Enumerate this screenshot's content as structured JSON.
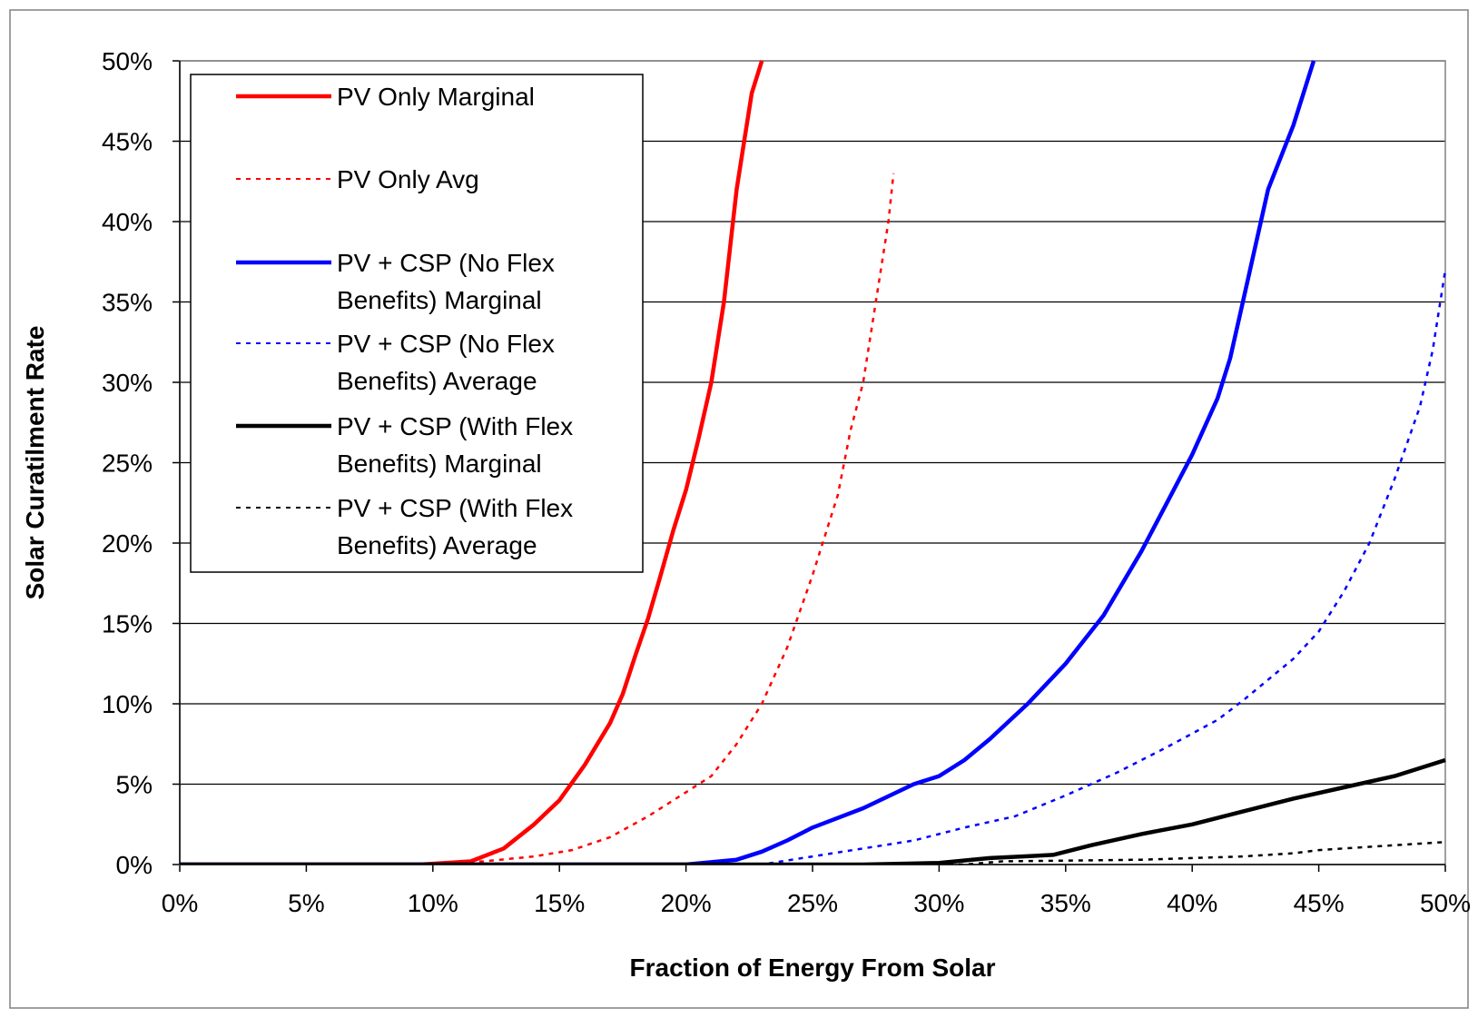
{
  "chart_data": {
    "type": "line",
    "xlabel": "Fraction of Energy From Solar",
    "ylabel": "Solar Curatilment Rate",
    "xlim": [
      0,
      50
    ],
    "ylim": [
      0,
      50
    ],
    "x_ticks": [
      "0%",
      "5%",
      "10%",
      "15%",
      "20%",
      "25%",
      "30%",
      "35%",
      "40%",
      "45%",
      "50%"
    ],
    "y_ticks": [
      "0%",
      "5%",
      "10%",
      "15%",
      "20%",
      "25%",
      "30%",
      "35%",
      "40%",
      "45%",
      "50%"
    ],
    "grid": "horizontal",
    "legend_position": "top-left",
    "series": [
      {
        "name": "PV Only Marginal",
        "legend_lines": [
          "PV Only Marginal"
        ],
        "color": "#ff0000",
        "style": "solid",
        "x": [
          0,
          5,
          9.5,
          11.5,
          12.8,
          14,
          15,
          16,
          17,
          17.5,
          18,
          18.5,
          19,
          19.5,
          20,
          20.5,
          21,
          21.5,
          22,
          22.3,
          22.6,
          23
        ],
        "y": [
          0,
          0,
          0,
          0.2,
          1,
          2.5,
          4,
          6.2,
          8.8,
          10.6,
          13,
          15.3,
          18,
          20.8,
          23.3,
          26.5,
          30,
          35,
          42,
          45,
          48,
          50
        ]
      },
      {
        "name": "PV Only Avg",
        "legend_lines": [
          "PV Only Avg"
        ],
        "color": "#ff0000",
        "style": "dashed",
        "x": [
          0,
          10,
          12,
          14,
          15.5,
          17,
          18.5,
          20,
          21,
          22,
          23,
          24,
          25,
          26,
          26.5,
          27,
          27.5,
          28,
          28.2
        ],
        "y": [
          0,
          0,
          0.2,
          0.5,
          0.9,
          1.7,
          3,
          4.5,
          5.5,
          7.5,
          10,
          13.5,
          18,
          23,
          27,
          30,
          35,
          40,
          43
        ]
      },
      {
        "name": "PV + CSP (No Flex Benefits) Marginal",
        "legend_lines": [
          "PV + CSP (No Flex",
          "Benefits) Marginal"
        ],
        "color": "#0000ff",
        "style": "solid",
        "x": [
          0,
          20,
          22,
          23,
          24,
          25,
          27,
          29,
          30,
          31,
          32,
          33.5,
          35,
          36.5,
          38,
          39,
          40,
          41,
          41.5,
          42,
          42.5,
          43,
          44,
          44.8
        ],
        "y": [
          0,
          0,
          0.3,
          0.8,
          1.5,
          2.3,
          3.5,
          5,
          5.5,
          6.5,
          7.8,
          10,
          12.5,
          15.5,
          19.5,
          22.5,
          25.5,
          29,
          31.5,
          35,
          38.5,
          42,
          46,
          50
        ]
      },
      {
        "name": "PV + CSP (No Flex Benefits) Average",
        "legend_lines": [
          "PV + CSP (No Flex",
          "Benefits) Average"
        ],
        "color": "#0000ff",
        "style": "dashed",
        "x": [
          0,
          23,
          25,
          27,
          29,
          31,
          33,
          35,
          37,
          39,
          41,
          42,
          43,
          44,
          45,
          46,
          47,
          48,
          49,
          49.5,
          50
        ],
        "y": [
          0,
          0,
          0.5,
          1,
          1.5,
          2.3,
          3,
          4.3,
          5.7,
          7.3,
          9,
          10.2,
          11.5,
          12.8,
          14.5,
          17,
          20,
          24,
          28.5,
          32,
          37
        ]
      },
      {
        "name": "PV + CSP (With Flex Benefits) Marginal",
        "legend_lines": [
          "PV + CSP (With Flex",
          "Benefits)  Marginal"
        ],
        "color": "#000000",
        "style": "solid",
        "x": [
          0,
          27,
          30,
          32,
          34.5,
          36,
          38,
          40,
          42,
          44,
          46,
          48,
          50
        ],
        "y": [
          0,
          0,
          0.1,
          0.4,
          0.6,
          1.2,
          1.9,
          2.5,
          3.3,
          4.1,
          4.8,
          5.5,
          6.5
        ]
      },
      {
        "name": "PV + CSP (With Flex Benefits) Average",
        "legend_lines": [
          "PV + CSP (With Flex",
          "Benefits) Average"
        ],
        "color": "#000000",
        "style": "dashed",
        "x": [
          0,
          31,
          32.5,
          38,
          40,
          42,
          44,
          45,
          47,
          50
        ],
        "y": [
          0,
          0,
          0.2,
          0.3,
          0.4,
          0.5,
          0.7,
          0.9,
          1.1,
          1.4
        ]
      }
    ]
  }
}
